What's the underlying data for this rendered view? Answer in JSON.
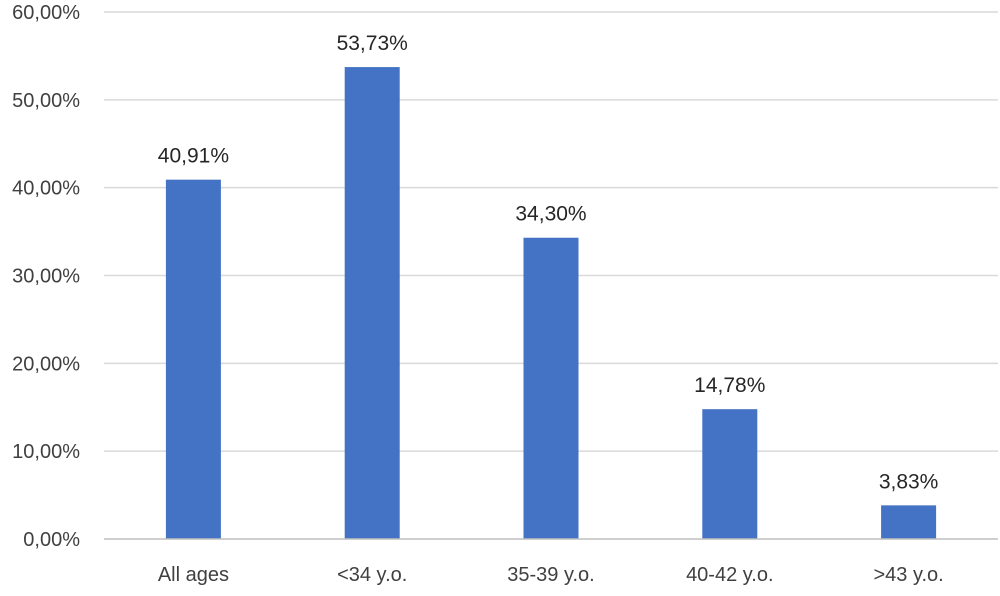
{
  "chart_data": {
    "type": "bar",
    "title": "",
    "xlabel": "",
    "ylabel": "",
    "categories": [
      "All ages",
      "<34 y.o.",
      "35-39 y.o.",
      "40-42 y.o.",
      ">43 y.o."
    ],
    "values": [
      40.91,
      53.73,
      34.3,
      14.78,
      3.83
    ],
    "data_labels": [
      "40,91%",
      "53,73%",
      "34,30%",
      "14,78%",
      "3,83%"
    ],
    "ylim": [
      0,
      60
    ],
    "yticks": [
      0,
      10,
      20,
      30,
      40,
      50,
      60
    ],
    "ytick_labels": [
      "0,00%",
      "10,00%",
      "20,00%",
      "30,00%",
      "40,00%",
      "50,00%",
      "60,00%"
    ],
    "grid": true,
    "legend": "none",
    "bar_color": "#4472C4"
  }
}
